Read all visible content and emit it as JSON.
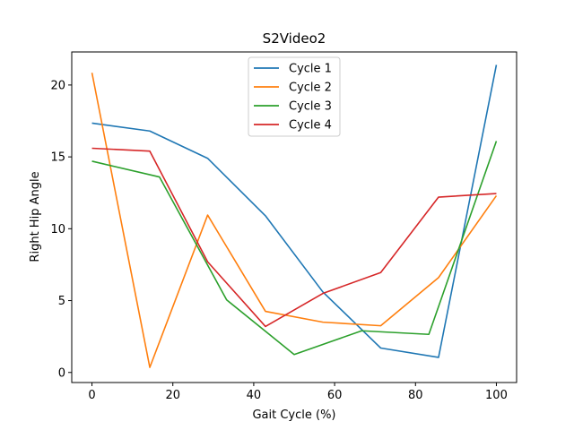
{
  "chart_data": {
    "type": "line",
    "title": "S2Video2",
    "xlabel": "Gait Cycle (%)",
    "ylabel": "Right Hip Angle",
    "xlim": [
      -5,
      105
    ],
    "ylim": [
      -0.7,
      22.3
    ],
    "xticks": [
      0,
      20,
      40,
      60,
      80,
      100
    ],
    "yticks": [
      0,
      5,
      10,
      15,
      20
    ],
    "grid": false,
    "legend_position": "top-center",
    "series": [
      {
        "name": "Cycle 1",
        "color": "#1f77b4",
        "x": [
          0,
          14.3,
          28.6,
          42.9,
          57.1,
          71.4,
          85.7,
          100
        ],
        "y": [
          17.35,
          16.8,
          14.9,
          10.9,
          5.6,
          1.7,
          1.05,
          21.4
        ]
      },
      {
        "name": "Cycle 2",
        "color": "#ff7f0e",
        "x": [
          0,
          14.3,
          28.6,
          42.9,
          57.1,
          71.4,
          85.7,
          100
        ],
        "y": [
          20.85,
          0.35,
          10.95,
          4.25,
          3.5,
          3.25,
          6.6,
          12.3
        ]
      },
      {
        "name": "Cycle 3",
        "color": "#2ca02c",
        "x": [
          0,
          16.7,
          33.3,
          50,
          66.7,
          83.3,
          100
        ],
        "y": [
          14.7,
          13.6,
          5.05,
          1.25,
          2.9,
          2.65,
          16.1
        ]
      },
      {
        "name": "Cycle 4",
        "color": "#d62728",
        "x": [
          0,
          14.3,
          28.6,
          42.9,
          57.1,
          71.4,
          85.7,
          100
        ],
        "y": [
          15.6,
          15.4,
          7.7,
          3.2,
          5.5,
          6.95,
          12.2,
          12.45
        ]
      }
    ]
  }
}
